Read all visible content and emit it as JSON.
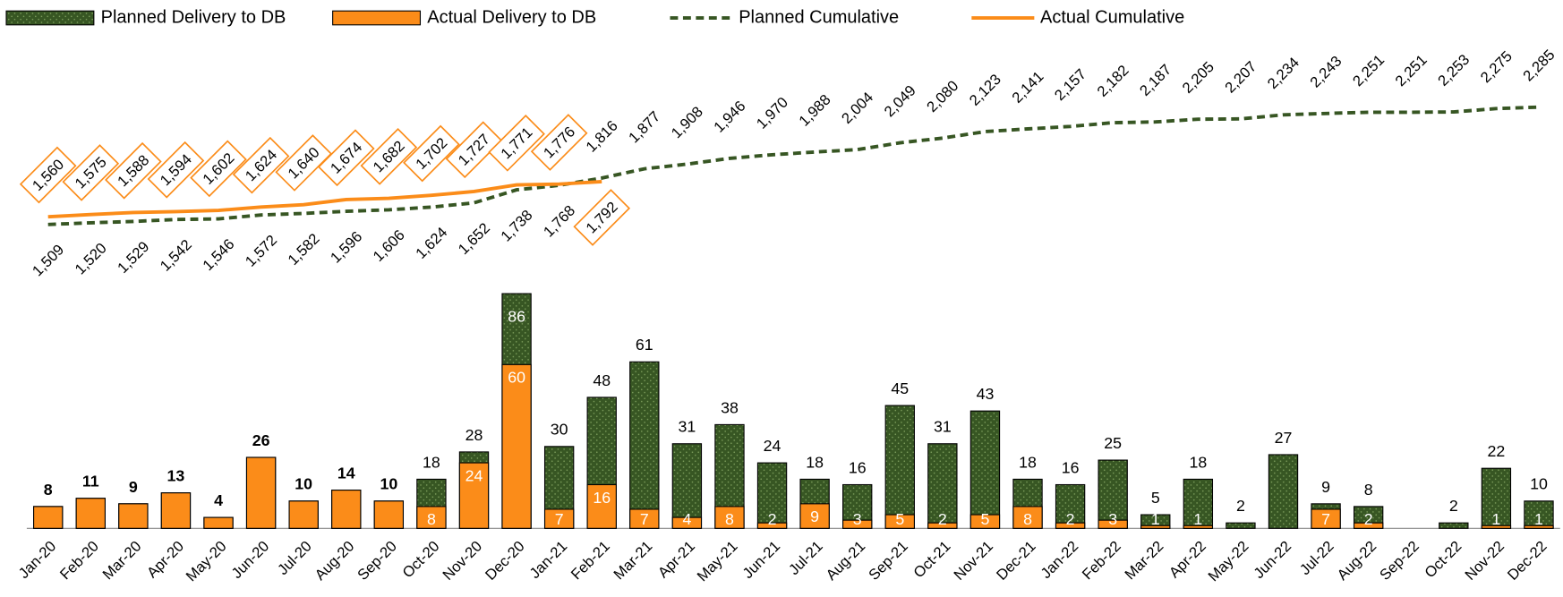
{
  "chart_data": {
    "type": "combo",
    "categories": [
      "Jan-20",
      "Feb-20",
      "Mar-20",
      "Apr-20",
      "May-20",
      "Jun-20",
      "Jul-20",
      "Aug-20",
      "Sep-20",
      "Oct-20",
      "Nov-20",
      "Dec-20",
      "Jan-21",
      "Feb-21",
      "Mar-21",
      "Apr-21",
      "May-21",
      "Jun-21",
      "Jul-21",
      "Aug-21",
      "Sep-21",
      "Oct-21",
      "Nov-21",
      "Dec-21",
      "Jan-22",
      "Feb-22",
      "Mar-22",
      "Apr-22",
      "May-22",
      "Jun-22",
      "Jul-22",
      "Aug-22",
      "Sep-22",
      "Oct-22",
      "Nov-22",
      "Dec-22"
    ],
    "ylim": [
      0,
      179
    ],
    "y2lim": [
      -500,
      2730
    ],
    "grid": false,
    "legend": "top",
    "series": [
      {
        "name": "Planned Delivery to DB",
        "type": "bar",
        "color": "#375623",
        "values": [
          8,
          11,
          9,
          13,
          4,
          26,
          10,
          14,
          10,
          18,
          28,
          86,
          30,
          48,
          61,
          31,
          38,
          24,
          18,
          16,
          45,
          31,
          43,
          18,
          16,
          25,
          5,
          18,
          2,
          27,
          9,
          8,
          null,
          2,
          22,
          10
        ]
      },
      {
        "name": "Actual Delivery to DB",
        "type": "bar",
        "color": "#fb8c19",
        "values": [
          8,
          11,
          9,
          13,
          4,
          26,
          10,
          14,
          10,
          8,
          24,
          60,
          7,
          16,
          7,
          4,
          8,
          2,
          9,
          3,
          5,
          2,
          5,
          8,
          2,
          3,
          1,
          1,
          null,
          null,
          7,
          2,
          null,
          null,
          1,
          1
        ]
      },
      {
        "name": "Planned Cumulative",
        "type": "line",
        "axis": "y2",
        "color": "#375623",
        "dash": true,
        "values": [
          1509,
          1520,
          1529,
          1542,
          1546,
          1572,
          1582,
          1596,
          1606,
          1624,
          1652,
          1738,
          1768,
          1816,
          1877,
          1908,
          1946,
          1970,
          1988,
          2004,
          2049,
          2080,
          2123,
          2141,
          2157,
          2182,
          2187,
          2205,
          2207,
          2234,
          2243,
          2251,
          2251,
          2253,
          2275,
          2285
        ],
        "value_labels": [
          "1,509",
          "1,520",
          "1,529",
          "1,542",
          "1,546",
          "1,572",
          "1,582",
          "1,596",
          "1,606",
          "1,624",
          "1,652",
          "1,738",
          "1,768",
          "1,816",
          "1,877",
          "1,908",
          "1,946",
          "1,970",
          "1,988",
          "2,004",
          "2,049",
          "2,080",
          "2,123",
          "2,141",
          "2,157",
          "2,182",
          "2,187",
          "2,205",
          "2,207",
          "2,234",
          "2,243",
          "2,251",
          "2,251",
          "2,253",
          "2,275",
          "2,285"
        ]
      },
      {
        "name": "Actual Cumulative",
        "type": "line",
        "axis": "y2",
        "color": "#fb8c19",
        "label_style": "boxed",
        "values": [
          1560,
          1575,
          1588,
          1594,
          1602,
          1624,
          1640,
          1674,
          1682,
          1702,
          1727,
          1771,
          1776,
          1792,
          null,
          null,
          null,
          null,
          null,
          null,
          null,
          null,
          null,
          null,
          null,
          null,
          null,
          null,
          null,
          null,
          null,
          null,
          null,
          null,
          null,
          null
        ],
        "value_labels": [
          "1,560",
          "1,575",
          "1,588",
          "1,594",
          "1,602",
          "1,624",
          "1,640",
          "1,674",
          "1,682",
          "1,702",
          "1,727",
          "1,771",
          "1,776",
          "1,792",
          null,
          null,
          null,
          null,
          null,
          null,
          null,
          null,
          null,
          null,
          null,
          null,
          null,
          null,
          null,
          null,
          null,
          null,
          null,
          null,
          null,
          null
        ]
      }
    ]
  }
}
